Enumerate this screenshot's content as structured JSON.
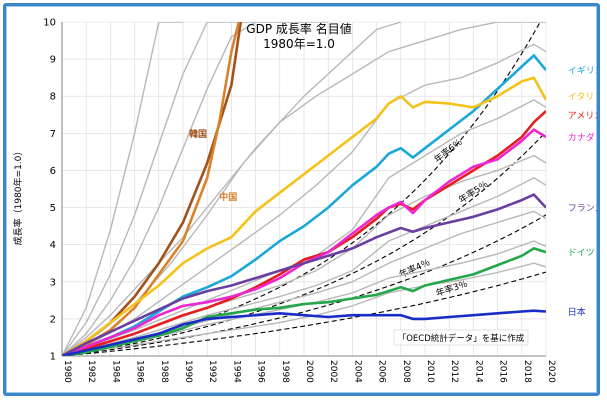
{
  "chart_data": {
    "type": "line",
    "title": "GDP 成長率 名目値",
    "subtitle": "1980年=1.0",
    "ylabel": "成長率（1980年=1.0）",
    "xlabel": "",
    "ylim": [
      1,
      10
    ],
    "xlim": [
      1980,
      2020
    ],
    "x_ticks": [
      1980,
      1982,
      1984,
      1986,
      1988,
      1990,
      1992,
      1994,
      1996,
      1998,
      2000,
      2002,
      2004,
      2006,
      2008,
      2010,
      2012,
      2014,
      2016,
      2018,
      2020
    ],
    "y_ticks": [
      1,
      2,
      3,
      4,
      5,
      6,
      7,
      8,
      9,
      10
    ],
    "grid": true,
    "note": "「OECD統計データ」を基に作成",
    "series": [
      {
        "name": "韓国",
        "color": "#a0521a",
        "x": [
          1980,
          1982,
          1984,
          1986,
          1988,
          1990,
          1992,
          1994,
          1995,
          1996
        ],
        "y": [
          1,
          1.4,
          1.9,
          2.6,
          3.5,
          4.6,
          6.2,
          8.3,
          10.5,
          11.5
        ]
      },
      {
        "name": "中国",
        "color": "#d9822b",
        "x": [
          1980,
          1982,
          1984,
          1986,
          1988,
          1990,
          1992,
          1993,
          1994,
          1995
        ],
        "y": [
          1,
          1.3,
          1.7,
          2.3,
          3.2,
          4.1,
          5.8,
          7.3,
          9.2,
          10.5
        ]
      },
      {
        "name": "イギリス",
        "color": "#1aa7d9",
        "x": [
          1980,
          1982,
          1984,
          1986,
          1988,
          1990,
          1992,
          1994,
          1996,
          1998,
          2000,
          2002,
          2004,
          2006,
          2007,
          2008,
          2009,
          2010,
          2012,
          2014,
          2016,
          2018,
          2019,
          2020
        ],
        "y": [
          1,
          1.25,
          1.5,
          1.8,
          2.2,
          2.6,
          2.85,
          3.15,
          3.6,
          4.1,
          4.5,
          5.0,
          5.6,
          6.1,
          6.45,
          6.6,
          6.35,
          6.6,
          7.1,
          7.6,
          8.2,
          8.8,
          9.1,
          8.7
        ]
      },
      {
        "name": "イタリア",
        "color": "#f5c21a",
        "x": [
          1980,
          1982,
          1984,
          1986,
          1988,
          1990,
          1992,
          1994,
          1996,
          1998,
          2000,
          2002,
          2004,
          2006,
          2007,
          2008,
          2009,
          2010,
          2012,
          2014,
          2016,
          2018,
          2019,
          2020
        ],
        "y": [
          1,
          1.4,
          1.9,
          2.4,
          2.9,
          3.5,
          3.9,
          4.2,
          4.9,
          5.4,
          5.9,
          6.4,
          6.9,
          7.4,
          7.8,
          8.0,
          7.7,
          7.85,
          7.8,
          7.7,
          8.0,
          8.4,
          8.5,
          7.9
        ]
      },
      {
        "name": "アメリカ",
        "color": "#e61e1e",
        "x": [
          1980,
          1982,
          1984,
          1986,
          1988,
          1990,
          1992,
          1994,
          1996,
          1998,
          2000,
          2002,
          2004,
          2006,
          2007,
          2008,
          2009,
          2010,
          2012,
          2014,
          2016,
          2018,
          2019,
          2020
        ],
        "y": [
          1,
          1.2,
          1.4,
          1.6,
          1.85,
          2.1,
          2.3,
          2.55,
          2.85,
          3.2,
          3.6,
          3.8,
          4.2,
          4.7,
          5.0,
          5.1,
          4.95,
          5.2,
          5.6,
          6.0,
          6.4,
          6.9,
          7.3,
          7.6
        ]
      },
      {
        "name": "カナダ",
        "color": "#ee26d2",
        "x": [
          1980,
          1982,
          1984,
          1986,
          1988,
          1990,
          1992,
          1994,
          1996,
          1998,
          2000,
          2002,
          2004,
          2006,
          2007,
          2008,
          2009,
          2010,
          2012,
          2014,
          2016,
          2018,
          2019,
          2020
        ],
        "y": [
          1,
          1.25,
          1.5,
          1.75,
          2.1,
          2.35,
          2.45,
          2.6,
          2.8,
          3.1,
          3.5,
          3.8,
          4.3,
          4.8,
          5.0,
          5.15,
          4.85,
          5.2,
          5.7,
          6.1,
          6.3,
          6.8,
          7.1,
          6.9
        ]
      },
      {
        "name": "フランス",
        "color": "#6a3fa0",
        "x": [
          1980,
          1982,
          1984,
          1986,
          1988,
          1990,
          1992,
          1994,
          1996,
          1998,
          2000,
          2002,
          2004,
          2006,
          2008,
          2009,
          2010,
          2012,
          2014,
          2016,
          2018,
          2019,
          2020
        ],
        "y": [
          1,
          1.35,
          1.65,
          1.95,
          2.25,
          2.55,
          2.75,
          2.9,
          3.1,
          3.3,
          3.5,
          3.7,
          3.9,
          4.2,
          4.45,
          4.35,
          4.45,
          4.6,
          4.75,
          4.95,
          5.2,
          5.35,
          5.0
        ]
      },
      {
        "name": "ドイツ",
        "color": "#22a84a",
        "x": [
          1980,
          1982,
          1984,
          1986,
          1988,
          1990,
          1992,
          1994,
          1996,
          1998,
          2000,
          2002,
          2004,
          2006,
          2008,
          2009,
          2010,
          2012,
          2014,
          2016,
          2018,
          2019,
          2020
        ],
        "y": [
          1,
          1.1,
          1.25,
          1.4,
          1.55,
          1.75,
          2.05,
          2.15,
          2.25,
          2.3,
          2.4,
          2.45,
          2.55,
          2.65,
          2.85,
          2.75,
          2.9,
          3.05,
          3.2,
          3.45,
          3.7,
          3.9,
          3.8
        ]
      },
      {
        "name": "日本",
        "color": "#1a2cc8",
        "x": [
          1980,
          1982,
          1984,
          1986,
          1988,
          1990,
          1992,
          1994,
          1996,
          1998,
          2000,
          2002,
          2004,
          2006,
          2008,
          2009,
          2010,
          2012,
          2014,
          2016,
          2018,
          2019,
          2020
        ],
        "y": [
          1,
          1.15,
          1.3,
          1.45,
          1.6,
          1.85,
          2.0,
          2.05,
          2.1,
          2.15,
          2.1,
          2.05,
          2.1,
          2.1,
          2.1,
          2.0,
          2.0,
          2.05,
          2.1,
          2.15,
          2.2,
          2.22,
          2.2
        ]
      },
      {
        "name": "",
        "color": "#b8b8b8",
        "x": [
          1980,
          1983,
          1986,
          1989,
          1992,
          1995,
          1998,
          2001,
          2004,
          2007,
          2010,
          2013,
          2016,
          2019,
          2020
        ],
        "y": [
          1,
          1.6,
          2.4,
          3.5,
          4.8,
          6.2,
          7.3,
          8.0,
          8.6,
          9.2,
          9.5,
          9.8,
          10.0,
          10.0,
          10.0
        ]
      },
      {
        "name": "",
        "color": "#b8b8b8",
        "x": [
          1980,
          1983,
          1986,
          1989,
          1992,
          1995,
          1998,
          2001,
          2004,
          2007,
          2010,
          2013,
          2016,
          2019,
          2020
        ],
        "y": [
          1,
          1.45,
          2.0,
          2.7,
          3.4,
          4.1,
          4.8,
          5.6,
          6.5,
          7.8,
          8.3,
          8.5,
          8.9,
          9.4,
          9.2
        ]
      },
      {
        "name": "",
        "color": "#b8b8b8",
        "x": [
          1980,
          1983,
          1986,
          1989,
          1992,
          1995,
          1998,
          2001,
          2004,
          2007,
          2010,
          2013,
          2016,
          2019,
          2020
        ],
        "y": [
          1,
          1.35,
          1.7,
          2.1,
          2.5,
          2.9,
          3.3,
          3.7,
          4.4,
          5.8,
          6.4,
          7.0,
          7.4,
          7.9,
          7.7
        ]
      },
      {
        "name": "",
        "color": "#b8b8b8",
        "x": [
          1980,
          1983,
          1986,
          1989,
          1992,
          1995,
          1998,
          2001,
          2004,
          2007,
          2010,
          2013,
          2016,
          2019,
          2020
        ],
        "y": [
          1,
          1.3,
          1.6,
          1.95,
          2.3,
          2.6,
          2.9,
          3.3,
          3.9,
          4.8,
          5.3,
          5.7,
          6.0,
          6.4,
          6.2
        ]
      },
      {
        "name": "",
        "color": "#b8b8b8",
        "x": [
          1980,
          1983,
          1986,
          1989,
          1992,
          1995,
          1998,
          2001,
          2004,
          2007,
          2010,
          2013,
          2016,
          2019,
          2020
        ],
        "y": [
          1,
          1.25,
          1.5,
          1.8,
          2.1,
          2.35,
          2.6,
          2.9,
          3.3,
          4.1,
          4.5,
          4.9,
          5.3,
          5.8,
          5.6
        ]
      },
      {
        "name": "",
        "color": "#b8b8b8",
        "x": [
          1980,
          1983,
          1986,
          1989,
          1992,
          1995,
          1998,
          2001,
          2004,
          2007,
          2010,
          2013,
          2016,
          2019,
          2020
        ],
        "y": [
          1,
          1.2,
          1.45,
          1.7,
          1.95,
          2.2,
          2.45,
          2.7,
          3.0,
          3.5,
          3.9,
          4.3,
          4.6,
          4.9,
          4.7
        ]
      },
      {
        "name": "",
        "color": "#b8b8b8",
        "x": [
          1980,
          1983,
          1986,
          1989,
          1992,
          1995,
          1998,
          2001,
          2004,
          2007,
          2010,
          2013,
          2016,
          2019,
          2020
        ],
        "y": [
          1,
          1.2,
          1.4,
          1.6,
          1.85,
          2.05,
          2.25,
          2.45,
          2.7,
          3.1,
          3.3,
          3.5,
          3.75,
          4.1,
          3.95
        ]
      },
      {
        "name": "",
        "color": "#b8b8b8",
        "x": [
          1980,
          1983,
          1986,
          1989,
          1992,
          1995,
          1998,
          2001,
          2004,
          2007,
          2010,
          2013,
          2016,
          2019,
          2020
        ],
        "y": [
          1,
          1.15,
          1.3,
          1.45,
          1.6,
          1.75,
          1.9,
          2.1,
          2.35,
          2.7,
          2.9,
          3.05,
          3.25,
          3.5,
          3.4
        ]
      },
      {
        "name": "",
        "color": "#b8b8b8",
        "x": [
          1980,
          1982,
          1984,
          1986,
          1988,
          1990,
          1992,
          1994,
          1996,
          1998,
          2000,
          2002
        ],
        "y": [
          1,
          1.6,
          2.5,
          3.6,
          5.0,
          6.6,
          8.2,
          9.6,
          10.0,
          10.0,
          10.0,
          10.0
        ]
      },
      {
        "name": "",
        "color": "#b8b8b8",
        "x": [
          1980,
          1982,
          1984,
          1986,
          1988,
          1990,
          1992,
          1994,
          1996
        ],
        "y": [
          1,
          1.9,
          3.2,
          4.8,
          6.7,
          8.6,
          10.0,
          10.0,
          10.0
        ]
      },
      {
        "name": "",
        "color": "#b8b8b8",
        "x": [
          1980,
          1982,
          1984,
          1986,
          1988,
          1990
        ],
        "y": [
          1,
          2.3,
          4.4,
          7.0,
          10.0,
          10.0
        ]
      },
      {
        "name": "",
        "color": "#b8b8b8",
        "x": [
          1980,
          1982,
          1984,
          1986,
          1988,
          1990,
          1992,
          1994,
          1996,
          1998,
          2000,
          2002,
          2004,
          2006,
          2008
        ],
        "y": [
          1,
          1.5,
          2.1,
          2.8,
          3.5,
          4.2,
          5.0,
          5.8,
          6.6,
          7.3,
          8.0,
          8.6,
          9.2,
          9.8,
          10.0
        ]
      }
    ],
    "growth_lines": [
      {
        "label": "年率6％",
        "rate": 0.06
      },
      {
        "label": "年率5％",
        "rate": 0.05
      },
      {
        "label": "年率4％",
        "rate": 0.04
      },
      {
        "label": "年率3％",
        "rate": 0.03
      }
    ]
  }
}
